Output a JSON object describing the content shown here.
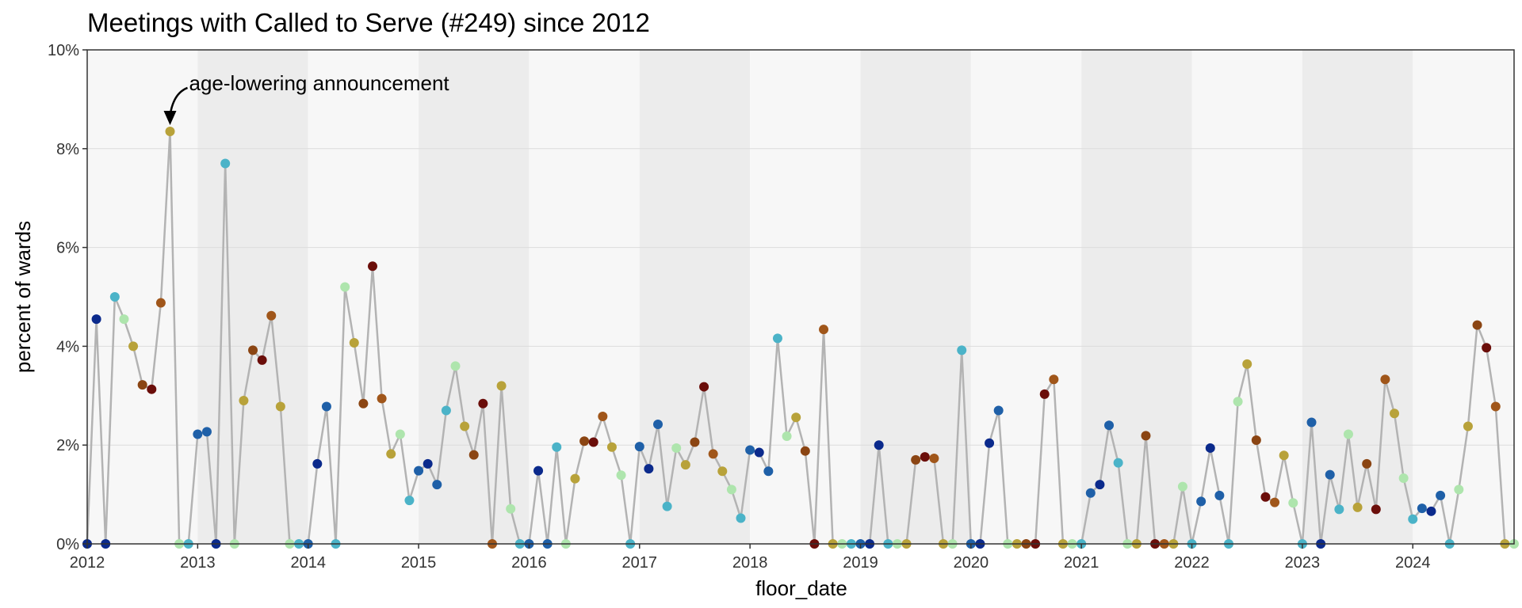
{
  "chart_data": {
    "type": "scatter",
    "title": "Meetings with Called to Serve (#249) since 2012",
    "xlabel": "floor_date",
    "ylabel": "percent of wards",
    "xlim": [
      "2012-01",
      "2024-12"
    ],
    "ylim": [
      0,
      10
    ],
    "x_ticks": [
      "2012",
      "2013",
      "2014",
      "2015",
      "2016",
      "2017",
      "2018",
      "2019",
      "2020",
      "2021",
      "2022",
      "2023",
      "2024"
    ],
    "y_ticks": [
      "0%",
      "2%",
      "4%",
      "6%",
      "8%",
      "10%"
    ],
    "grid": true,
    "line_color": "#b3b3b3",
    "band_colors": [
      "#f7f7f7",
      "#ececec"
    ],
    "annotation": {
      "text": "age-lowering announcement",
      "x": "2012-10",
      "y": 8.35
    },
    "series": [
      {
        "x": [
          "2012-01",
          "2012-02",
          "2012-03",
          "2012-04",
          "2012-05",
          "2012-06",
          "2012-07",
          "2012-08",
          "2012-09",
          "2012-10",
          "2012-11",
          "2012-12",
          "2013-01",
          "2013-02",
          "2013-03",
          "2013-04",
          "2013-05",
          "2013-06",
          "2013-07",
          "2013-08",
          "2013-09",
          "2013-10",
          "2013-11",
          "2013-12",
          "2014-01",
          "2014-02",
          "2014-03",
          "2014-04",
          "2014-05",
          "2014-06",
          "2014-07",
          "2014-08",
          "2014-09",
          "2014-10",
          "2014-11",
          "2014-12",
          "2015-01",
          "2015-02",
          "2015-03",
          "2015-04",
          "2015-05",
          "2015-06",
          "2015-07",
          "2015-08",
          "2015-09",
          "2015-10",
          "2015-11",
          "2015-12",
          "2016-01",
          "2016-02",
          "2016-03",
          "2016-04",
          "2016-05",
          "2016-06",
          "2016-07",
          "2016-08",
          "2016-09",
          "2016-10",
          "2016-11",
          "2016-12",
          "2017-01",
          "2017-02",
          "2017-03",
          "2017-04",
          "2017-05",
          "2017-06",
          "2017-07",
          "2017-08",
          "2017-09",
          "2017-10",
          "2017-11",
          "2017-12",
          "2018-01",
          "2018-02",
          "2018-03",
          "2018-04",
          "2018-05",
          "2018-06",
          "2018-07",
          "2018-08",
          "2018-09",
          "2018-10",
          "2018-11",
          "2018-12",
          "2019-01",
          "2019-02",
          "2019-03",
          "2019-04",
          "2019-05",
          "2019-06",
          "2019-07",
          "2019-08",
          "2019-09",
          "2019-10",
          "2019-11",
          "2019-12",
          "2020-01",
          "2020-02",
          "2020-03",
          "2020-04",
          "2020-05",
          "2020-06",
          "2020-07",
          "2020-08",
          "2020-09",
          "2020-10",
          "2020-11",
          "2020-12",
          "2021-01",
          "2021-02",
          "2021-03",
          "2021-04",
          "2021-05",
          "2021-06",
          "2021-07",
          "2021-08",
          "2021-09",
          "2021-10",
          "2021-11",
          "2021-12",
          "2022-01",
          "2022-02",
          "2022-03",
          "2022-04",
          "2022-05",
          "2022-06",
          "2022-07",
          "2022-08",
          "2022-09",
          "2022-10",
          "2022-11",
          "2022-12",
          "2023-01",
          "2023-02",
          "2023-03",
          "2023-04",
          "2023-05",
          "2023-06",
          "2023-07",
          "2023-08",
          "2023-09",
          "2023-10",
          "2023-11",
          "2023-12",
          "2024-01",
          "2024-02",
          "2024-03",
          "2024-04",
          "2024-05",
          "2024-06",
          "2024-07",
          "2024-08",
          "2024-09",
          "2024-10",
          "2024-11",
          "2024-12"
        ],
        "y": [
          0,
          4.55,
          0,
          5.0,
          4.55,
          4.0,
          3.22,
          3.13,
          4.88,
          8.35,
          0,
          0,
          2.22,
          2.27,
          0,
          7.7,
          0,
          2.9,
          3.92,
          3.72,
          4.62,
          2.78,
          0,
          0,
          0,
          1.62,
          2.78,
          0,
          5.2,
          4.07,
          2.84,
          5.62,
          2.94,
          1.82,
          2.22,
          0.88,
          1.48,
          1.62,
          1.2,
          2.7,
          3.6,
          2.38,
          1.8,
          2.84,
          0,
          3.2,
          0.71,
          0,
          0,
          1.48,
          0,
          1.96,
          0,
          1.32,
          2.08,
          2.06,
          2.58,
          1.96,
          1.39,
          0,
          1.97,
          1.52,
          2.42,
          0.76,
          1.94,
          1.6,
          2.06,
          3.18,
          1.82,
          1.47,
          1.1,
          0.52,
          1.9,
          1.85,
          1.47,
          4.16,
          2.18,
          2.56,
          1.88,
          0,
          4.34,
          0,
          0,
          0,
          0,
          0,
          2.0,
          0,
          0,
          0,
          1.7,
          1.76,
          1.73,
          0,
          0,
          3.92,
          0,
          0,
          2.04,
          2.7,
          0,
          0,
          0,
          0,
          3.03,
          3.33,
          0,
          0,
          0,
          1.03,
          1.2,
          2.4,
          1.64,
          0,
          0,
          2.19,
          0,
          0,
          0,
          1.16,
          0,
          0.86,
          1.94,
          0.98,
          0,
          2.88,
          3.64,
          2.1,
          0.95,
          0.84,
          1.79,
          0.83,
          0,
          2.46,
          0,
          1.4,
          0.7,
          2.22,
          0.74,
          1.62,
          0.7,
          3.33,
          2.64,
          1.33,
          0.5,
          0.72,
          0.66,
          0.98,
          0,
          1.1,
          2.38,
          4.43,
          3.97,
          2.78,
          0,
          0
        ],
        "colors": [
          "#0b2a8c",
          "#0b2a8c",
          "#0b2a8c",
          "#4bb3c8",
          "#aee5ad",
          "#b8a23a",
          "#8b4513",
          "#6b0e0a",
          "#a0561a",
          "#b8a23a",
          "#aee5ad",
          "#4bb3c8",
          "#1f60a8",
          "#1f60a8",
          "#0b2a8c",
          "#4bb3c8",
          "#aee5ad",
          "#b8a23a",
          "#8b4513",
          "#6b0e0a",
          "#a0561a",
          "#b8a23a",
          "#aee5ad",
          "#4bb3c8",
          "#1f60a8",
          "#0b2a8c",
          "#1f60a8",
          "#4bb3c8",
          "#aee5ad",
          "#b8a23a",
          "#8b4513",
          "#6b0e0a",
          "#a0561a",
          "#b8a23a",
          "#aee5ad",
          "#4bb3c8",
          "#1f60a8",
          "#0b2a8c",
          "#1f60a8",
          "#4bb3c8",
          "#aee5ad",
          "#b8a23a",
          "#8b4513",
          "#6b0e0a",
          "#a0561a",
          "#b8a23a",
          "#aee5ad",
          "#4bb3c8",
          "#1f60a8",
          "#0b2a8c",
          "#1f60a8",
          "#4bb3c8",
          "#aee5ad",
          "#b8a23a",
          "#8b4513",
          "#6b0e0a",
          "#a0561a",
          "#b8a23a",
          "#aee5ad",
          "#4bb3c8",
          "#1f60a8",
          "#0b2a8c",
          "#1f60a8",
          "#4bb3c8",
          "#aee5ad",
          "#b8a23a",
          "#8b4513",
          "#6b0e0a",
          "#a0561a",
          "#b8a23a",
          "#aee5ad",
          "#4bb3c8",
          "#1f60a8",
          "#0b2a8c",
          "#1f60a8",
          "#4bb3c8",
          "#aee5ad",
          "#b8a23a",
          "#8b4513",
          "#6b0e0a",
          "#a0561a",
          "#b8a23a",
          "#aee5ad",
          "#4bb3c8",
          "#1f60a8",
          "#0b2a8c",
          "#0b2a8c",
          "#4bb3c8",
          "#aee5ad",
          "#b8a23a",
          "#8b4513",
          "#6b0e0a",
          "#a0561a",
          "#b8a23a",
          "#aee5ad",
          "#4bb3c8",
          "#1f60a8",
          "#0b2a8c",
          "#0b2a8c",
          "#1f60a8",
          "#aee5ad",
          "#b8a23a",
          "#8b4513",
          "#6b0e0a",
          "#6b0e0a",
          "#a0561a",
          "#b8a23a",
          "#aee5ad",
          "#4bb3c8",
          "#1f60a8",
          "#0b2a8c",
          "#1f60a8",
          "#4bb3c8",
          "#aee5ad",
          "#b8a23a",
          "#8b4513",
          "#6b0e0a",
          "#a0561a",
          "#b8a23a",
          "#aee5ad",
          "#4bb3c8",
          "#1f60a8",
          "#0b2a8c",
          "#1f60a8",
          "#4bb3c8",
          "#aee5ad",
          "#b8a23a",
          "#8b4513",
          "#6b0e0a",
          "#a0561a",
          "#b8a23a",
          "#aee5ad",
          "#4bb3c8",
          "#1f60a8",
          "#0b2a8c",
          "#1f60a8",
          "#4bb3c8",
          "#aee5ad",
          "#b8a23a",
          "#8b4513",
          "#6b0e0a",
          "#a0561a",
          "#b8a23a",
          "#aee5ad",
          "#4bb3c8",
          "#1f60a8",
          "#0b2a8c",
          "#1f60a8",
          "#4bb3c8",
          "#aee5ad",
          "#b8a23a",
          "#8b4513",
          "#6b0e0a",
          "#a0561a",
          "#b8a23a",
          "#aee5ad"
        ]
      }
    ]
  }
}
